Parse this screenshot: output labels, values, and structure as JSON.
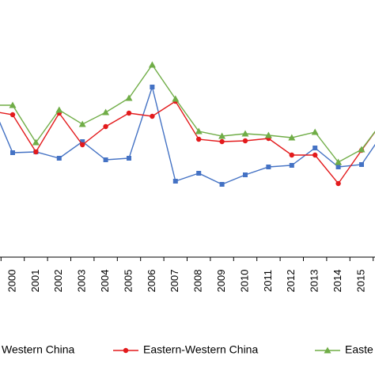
{
  "chart_data": {
    "type": "line",
    "categories": [
      null,
      "2000",
      "2001",
      "2002",
      "2003",
      "2004",
      "2005",
      "2006",
      "2007",
      "2008",
      "2009",
      "2010",
      "2011",
      "2012",
      "2013",
      "2014",
      "2015",
      null
    ],
    "ylim": [
      0,
      325
    ],
    "series": [
      {
        "name": "Western China",
        "color": "#4472c4",
        "marker": "square",
        "values": [
          201,
          132,
          133,
          125,
          146,
          123,
          125,
          215,
          96,
          106,
          92,
          104,
          114,
          116,
          138,
          114,
          117,
          160
        ]
      },
      {
        "name": "Eastern-Western China",
        "color": "#e31a1c",
        "marker": "circle",
        "values": [
          185,
          180,
          133,
          182,
          142,
          165,
          182,
          178,
          197,
          149,
          146,
          147,
          150,
          129,
          129,
          93,
          135,
          175
        ]
      },
      {
        "name": "Easte",
        "color": "#70ad47",
        "marker": "triangle",
        "values": [
          192,
          192,
          145,
          186,
          168,
          183,
          201,
          243,
          200,
          159,
          153,
          156,
          154,
          151,
          158,
          120,
          136,
          175
        ]
      }
    ]
  }
}
